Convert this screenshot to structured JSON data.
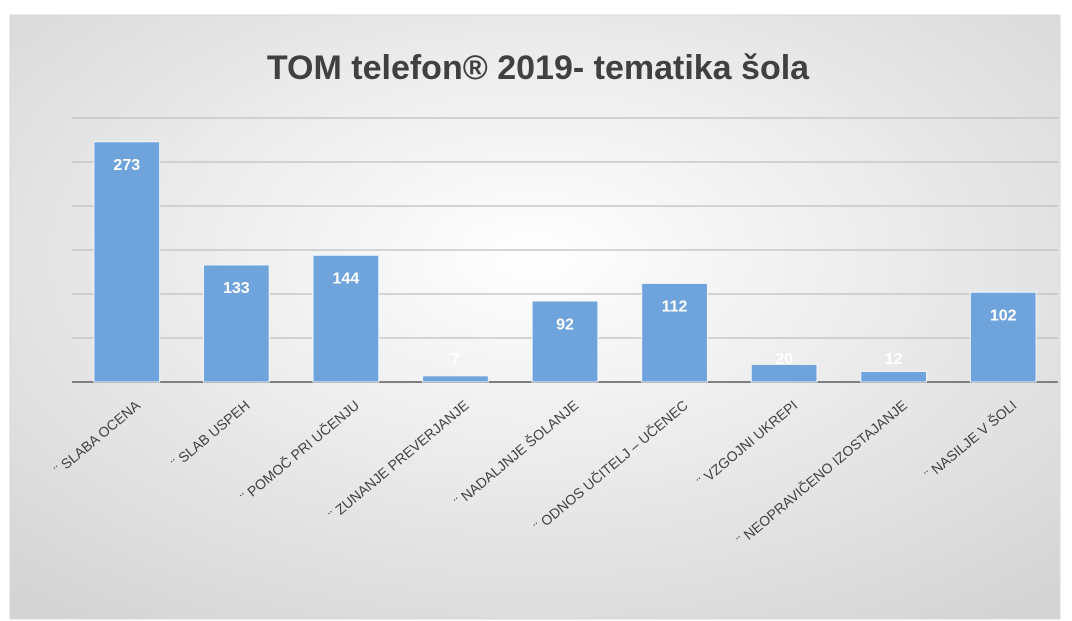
{
  "chart_data": {
    "type": "bar",
    "title": "TOM telefon® 2019- tematika šola",
    "categories": [
      "¨ SLABA OCENA",
      "¨ SLAB USPEH",
      "¨ POMOČ PRI UČENJU",
      "¨ ZUNANJE PREVERJANJE",
      "¨ NADALJNJE ŠOLANJE",
      "¨ ODNOS UČITELJ – UČENEC",
      "¨ VZGOJNI UKREPI",
      "¨ NEOPRAVIČENO IZOSTAJANJE",
      "¨ NASILJE V ŠOLI"
    ],
    "values": [
      273,
      133,
      144,
      7,
      92,
      112,
      20,
      12,
      102
    ],
    "color": "#6fa3dc",
    "ylim": [
      0,
      300
    ],
    "yticks": [
      0,
      50,
      100,
      150,
      200,
      250,
      300
    ],
    "grid": true
  }
}
